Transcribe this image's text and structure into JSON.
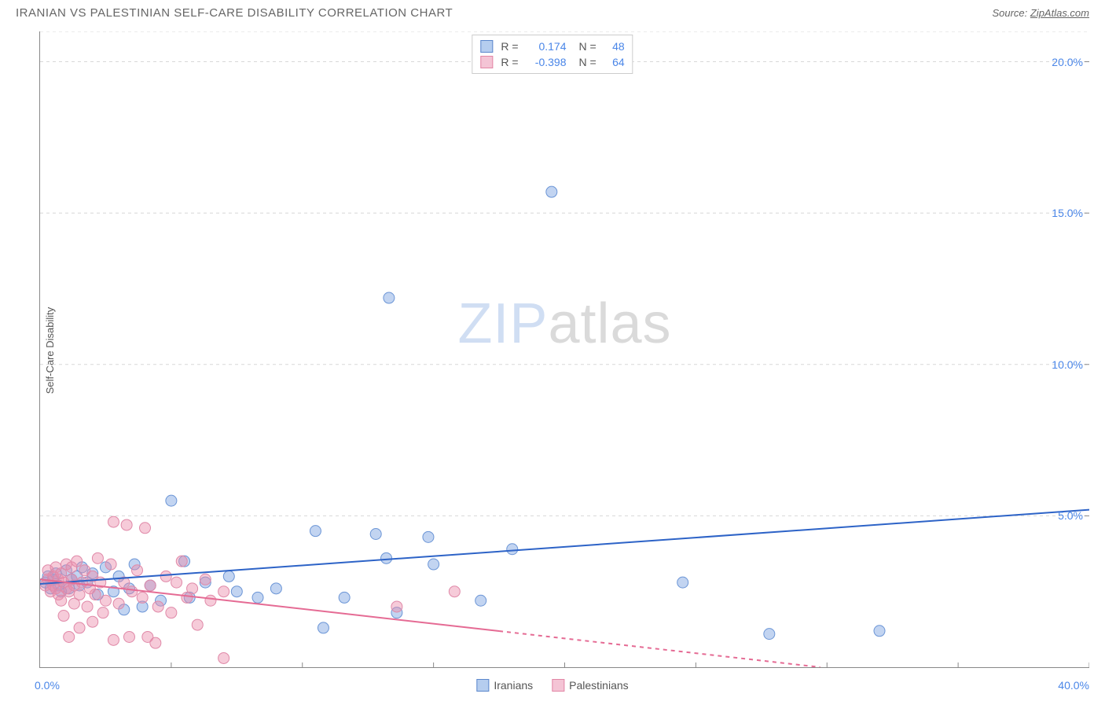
{
  "header": {
    "title": "IRANIAN VS PALESTINIAN SELF-CARE DISABILITY CORRELATION CHART",
    "source_prefix": "Source: ",
    "source_link": "ZipAtlas.com"
  },
  "ylabel": "Self-Care Disability",
  "watermark": {
    "part1": "ZIP",
    "part2": "atlas"
  },
  "chart": {
    "type": "scatter",
    "xlim": [
      0,
      40
    ],
    "ylim": [
      0,
      21
    ],
    "xtick_step": 5,
    "ytick_step": 5,
    "x_min_label": "0.0%",
    "x_max_label": "40.0%",
    "ytick_labels": [
      "5.0%",
      "10.0%",
      "15.0%",
      "20.0%"
    ],
    "ytick_values": [
      5,
      10,
      15,
      20
    ],
    "grid_color": "#d8d8d8",
    "tick_color": "#888",
    "background_color": "#ffffff",
    "marker_radius": 7,
    "marker_stroke_width": 1
  },
  "series": [
    {
      "name": "Iranians",
      "color_fill": "rgba(120,160,225,0.45)",
      "color_stroke": "#6b95d6",
      "swatch_fill": "#b5cdef",
      "swatch_border": "#5b87cc",
      "r_value": "0.174",
      "n_value": "48",
      "trend": {
        "x1": 0,
        "y1": 2.75,
        "x2": 40,
        "y2": 5.2,
        "color": "#2d63c7",
        "width": 2,
        "solid_until_x": 40
      },
      "points": [
        [
          0.2,
          2.8
        ],
        [
          0.3,
          3.0
        ],
        [
          0.4,
          2.6
        ],
        [
          0.5,
          2.9
        ],
        [
          0.6,
          3.1
        ],
        [
          0.7,
          2.7
        ],
        [
          0.8,
          2.5
        ],
        [
          1.0,
          3.2
        ],
        [
          1.1,
          2.6
        ],
        [
          1.2,
          2.9
        ],
        [
          1.4,
          3.0
        ],
        [
          1.5,
          2.7
        ],
        [
          1.6,
          3.3
        ],
        [
          1.8,
          2.8
        ],
        [
          2.0,
          3.1
        ],
        [
          2.2,
          2.4
        ],
        [
          2.5,
          3.3
        ],
        [
          2.8,
          2.5
        ],
        [
          3.0,
          3.0
        ],
        [
          3.2,
          1.9
        ],
        [
          3.4,
          2.6
        ],
        [
          3.6,
          3.4
        ],
        [
          3.9,
          2.0
        ],
        [
          4.2,
          2.7
        ],
        [
          4.6,
          2.2
        ],
        [
          5.0,
          5.5
        ],
        [
          5.5,
          3.5
        ],
        [
          5.7,
          2.3
        ],
        [
          6.3,
          2.8
        ],
        [
          7.2,
          3.0
        ],
        [
          7.5,
          2.5
        ],
        [
          8.3,
          2.3
        ],
        [
          9.0,
          2.6
        ],
        [
          10.5,
          4.5
        ],
        [
          10.8,
          1.3
        ],
        [
          11.6,
          2.3
        ],
        [
          12.8,
          4.4
        ],
        [
          13.2,
          3.6
        ],
        [
          13.6,
          1.8
        ],
        [
          14.8,
          4.3
        ],
        [
          15.0,
          3.4
        ],
        [
          16.8,
          2.2
        ],
        [
          18.0,
          3.9
        ],
        [
          19.5,
          15.7
        ],
        [
          24.5,
          2.8
        ],
        [
          27.8,
          1.1
        ],
        [
          32.0,
          1.2
        ],
        [
          13.3,
          12.2
        ]
      ]
    },
    {
      "name": "Palestinians",
      "color_fill": "rgba(235,140,170,0.45)",
      "color_stroke": "#e089a8",
      "swatch_fill": "#f4c4d5",
      "swatch_border": "#e286a5",
      "r_value": "-0.398",
      "n_value": "64",
      "trend": {
        "x1": 0,
        "y1": 2.9,
        "x2": 40,
        "y2": -1.0,
        "color": "#e56b94",
        "width": 2,
        "solid_until_x": 17.5
      },
      "points": [
        [
          0.2,
          2.7
        ],
        [
          0.3,
          2.9
        ],
        [
          0.3,
          3.2
        ],
        [
          0.4,
          2.5
        ],
        [
          0.5,
          2.7
        ],
        [
          0.5,
          3.0
        ],
        [
          0.6,
          2.6
        ],
        [
          0.6,
          3.3
        ],
        [
          0.7,
          2.4
        ],
        [
          0.7,
          2.9
        ],
        [
          0.8,
          3.1
        ],
        [
          0.8,
          2.2
        ],
        [
          0.9,
          2.8
        ],
        [
          0.9,
          1.7
        ],
        [
          1.0,
          2.6
        ],
        [
          1.0,
          3.4
        ],
        [
          1.1,
          1.0
        ],
        [
          1.1,
          2.5
        ],
        [
          1.2,
          2.9
        ],
        [
          1.2,
          3.3
        ],
        [
          1.3,
          2.1
        ],
        [
          1.3,
          2.7
        ],
        [
          1.4,
          3.5
        ],
        [
          1.5,
          2.4
        ],
        [
          1.5,
          1.3
        ],
        [
          1.6,
          2.8
        ],
        [
          1.7,
          3.2
        ],
        [
          1.8,
          2.0
        ],
        [
          1.9,
          2.6
        ],
        [
          2.0,
          1.5
        ],
        [
          2.0,
          3.0
        ],
        [
          2.1,
          2.4
        ],
        [
          2.2,
          3.6
        ],
        [
          2.3,
          2.8
        ],
        [
          2.4,
          1.8
        ],
        [
          2.5,
          2.2
        ],
        [
          2.7,
          3.4
        ],
        [
          2.8,
          0.9
        ],
        [
          2.8,
          4.8
        ],
        [
          3.0,
          2.1
        ],
        [
          3.2,
          2.8
        ],
        [
          3.3,
          4.7
        ],
        [
          3.4,
          1.0
        ],
        [
          3.5,
          2.5
        ],
        [
          3.7,
          3.2
        ],
        [
          3.9,
          2.3
        ],
        [
          4.0,
          4.6
        ],
        [
          4.1,
          1.0
        ],
        [
          4.2,
          2.7
        ],
        [
          4.4,
          0.8
        ],
        [
          4.5,
          2.0
        ],
        [
          4.8,
          3.0
        ],
        [
          5.0,
          1.8
        ],
        [
          5.2,
          2.8
        ],
        [
          5.4,
          3.5
        ],
        [
          5.6,
          2.3
        ],
        [
          5.8,
          2.6
        ],
        [
          6.0,
          1.4
        ],
        [
          6.3,
          2.9
        ],
        [
          6.5,
          2.2
        ],
        [
          7.0,
          0.3
        ],
        [
          7.0,
          2.5
        ],
        [
          15.8,
          2.5
        ],
        [
          13.6,
          2.0
        ]
      ]
    }
  ],
  "legend_top": {
    "r_label": "R =",
    "n_label": "N ="
  },
  "legend_bottom": {
    "items": [
      "Iranians",
      "Palestinians"
    ]
  }
}
